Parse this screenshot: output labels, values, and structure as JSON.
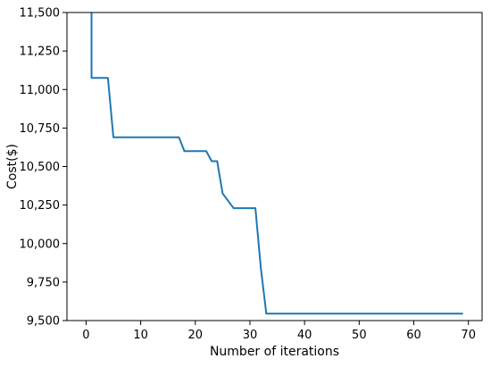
{
  "chart_data": {
    "type": "line",
    "title": "",
    "xlabel": "Number of iterations",
    "ylabel": "Cost($)",
    "xlim": [
      -3.5,
      72.5
    ],
    "ylim": [
      9500,
      11500
    ],
    "xticks": [
      0,
      10,
      20,
      30,
      40,
      50,
      60,
      70
    ],
    "xtick_labels": [
      "0",
      "10",
      "20",
      "30",
      "40",
      "50",
      "60",
      "70"
    ],
    "yticks": [
      9500,
      9750,
      10000,
      10250,
      10500,
      10750,
      11000,
      11250,
      11500
    ],
    "ytick_labels": [
      "9,500",
      "9,750",
      "10,000",
      "10,250",
      "10,500",
      "10,750",
      "11,000",
      "11,250",
      "11,500"
    ],
    "grid": false,
    "legend": "none",
    "series": [
      {
        "color": "#1f77b4",
        "x": [
          1,
          1,
          4,
          5,
          17,
          18,
          22,
          23,
          24,
          25,
          27,
          31,
          32,
          33,
          69
        ],
        "y": [
          11500,
          11075,
          11075,
          10690,
          10690,
          10600,
          10600,
          10535,
          10535,
          10325,
          10230,
          10230,
          9840,
          9545,
          9545
        ]
      }
    ]
  }
}
